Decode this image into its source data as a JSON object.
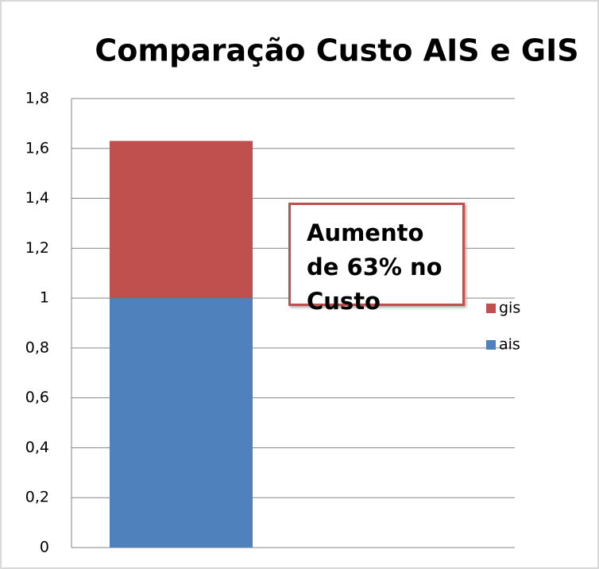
{
  "chart_data": {
    "type": "stacked_bar",
    "title": "Comparação Custo AIS e GIS",
    "categories": [
      null
    ],
    "series": [
      {
        "name": "ais",
        "color": "#4f81bd",
        "values": [
          1
        ]
      },
      {
        "name": "gis",
        "color": "#c0504d",
        "values": [
          0.63
        ]
      }
    ],
    "ylim": [
      0,
      1.8
    ],
    "yticks": [
      0,
      {
        "value": 0.2,
        "label": "0,2"
      },
      {
        "value": 0.4,
        "label": "0,4"
      },
      {
        "value": 0.6,
        "label": "0,6"
      },
      {
        "value": 0.8,
        "label": "0,8"
      },
      1,
      {
        "value": 1.2,
        "label": "1,2"
      },
      {
        "value": 1.4,
        "label": "1,4"
      },
      {
        "value": 1.6,
        "label": "1,6"
      },
      {
        "value": 1.8,
        "label": "1,8"
      }
    ],
    "grid": true,
    "legend": "right",
    "annotation": "Aumento de 63% no Custo"
  }
}
